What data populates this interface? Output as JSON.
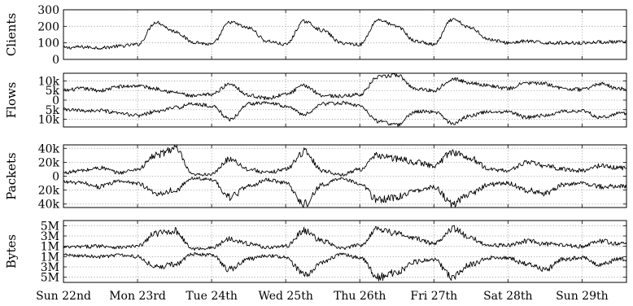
{
  "chart_data": [
    {
      "type": "line",
      "ylabel": "Clients",
      "ylim": [
        0,
        300
      ],
      "yticks": [
        0,
        100,
        200,
        300
      ],
      "ytick_labels": [
        "0",
        "100",
        "200",
        "300"
      ],
      "grid": true,
      "series": [
        {
          "x": [
            0,
            0.25,
            0.5,
            0.75,
            1,
            1.25,
            1.5,
            1.75,
            2,
            2.25,
            2.5,
            2.75,
            3,
            3.25,
            3.5,
            3.75,
            4,
            4.25,
            4.5,
            4.75,
            5,
            5.25,
            5.5,
            5.75,
            6,
            6.25,
            6.5,
            6.75,
            7,
            7.25,
            7.5
          ],
          "values": [
            70,
            75,
            70,
            80,
            90,
            225,
            170,
            105,
            90,
            225,
            190,
            110,
            90,
            230,
            175,
            100,
            90,
            240,
            200,
            110,
            90,
            240,
            190,
            120,
            100,
            110,
            100,
            100,
            100,
            105,
            105
          ]
        }
      ]
    },
    {
      "type": "line",
      "ylabel": "Flows",
      "ylim": [
        -14000,
        14000
      ],
      "yticks": [
        -10000,
        -5000,
        0,
        5000,
        10000
      ],
      "ytick_labels": [
        "10k",
        "5k",
        "0",
        "5k",
        "10k"
      ],
      "grid": true,
      "series": [
        {
          "x": [
            0,
            0.25,
            0.5,
            0.75,
            1,
            1.25,
            1.5,
            1.75,
            2,
            2.25,
            2.5,
            2.75,
            3,
            3.25,
            3.5,
            3.75,
            4,
            4.25,
            4.5,
            4.75,
            5,
            5.25,
            5.5,
            5.75,
            6,
            6.25,
            6.5,
            6.75,
            7,
            7.25,
            7.5
          ],
          "values": [
            5000,
            6000,
            5000,
            7000,
            7500,
            6000,
            4000,
            2000,
            3000,
            8500,
            2500,
            1000,
            3000,
            7500,
            2500,
            2000,
            3000,
            12000,
            13000,
            6000,
            5000,
            11000,
            9000,
            7500,
            6000,
            9000,
            8500,
            6000,
            5500,
            8500,
            6000
          ]
        },
        {
          "x": [
            0,
            0.25,
            0.5,
            0.75,
            1,
            1.25,
            1.5,
            1.75,
            2,
            2.25,
            2.5,
            2.75,
            3,
            3.25,
            3.5,
            3.75,
            4,
            4.25,
            4.5,
            4.75,
            5,
            5.25,
            5.5,
            5.75,
            6,
            6.25,
            6.5,
            6.75,
            7,
            7.25,
            7.5
          ],
          "values": [
            -5000,
            -5500,
            -5500,
            -7000,
            -8000,
            -6000,
            -4000,
            -2000,
            -3000,
            -10000,
            -2000,
            -1000,
            -3000,
            -7500,
            -2000,
            -1500,
            -3000,
            -11000,
            -13000,
            -6000,
            -6000,
            -12000,
            -8000,
            -6000,
            -6000,
            -9000,
            -8000,
            -6000,
            -5500,
            -9000,
            -7000
          ]
        }
      ]
    },
    {
      "type": "line",
      "ylabel": "Packets",
      "ylim": [
        -45000,
        45000
      ],
      "yticks": [
        -40000,
        -20000,
        0,
        20000,
        40000
      ],
      "ytick_labels": [
        "40k",
        "20k",
        "0",
        "20k",
        "40k"
      ],
      "grid": true,
      "series": [
        {
          "x": [
            0,
            0.25,
            0.5,
            0.75,
            1,
            1.25,
            1.5,
            1.75,
            2,
            2.25,
            2.5,
            2.75,
            3,
            3.25,
            3.5,
            3.75,
            4,
            4.25,
            4.5,
            4.75,
            5,
            5.25,
            5.5,
            5.75,
            6,
            6.25,
            6.5,
            6.75,
            7,
            7.25,
            7.5
          ],
          "values": [
            5000,
            8000,
            12000,
            5000,
            10000,
            30000,
            40000,
            2000,
            3000,
            25000,
            10000,
            5000,
            10000,
            35000,
            8000,
            2000,
            10000,
            30000,
            25000,
            20000,
            15000,
            35000,
            25000,
            10000,
            8000,
            20000,
            15000,
            10000,
            8000,
            15000,
            12000
          ]
        },
        {
          "x": [
            0,
            0.25,
            0.5,
            0.75,
            1,
            1.25,
            1.5,
            1.75,
            2,
            2.25,
            2.5,
            2.75,
            3,
            3.25,
            3.5,
            3.75,
            4,
            4.25,
            4.5,
            4.75,
            5,
            5.25,
            5.5,
            5.75,
            6,
            6.25,
            6.5,
            6.75,
            7,
            7.25,
            7.5
          ],
          "values": [
            -8000,
            -10000,
            -15000,
            -7000,
            -10000,
            -25000,
            -20000,
            -3000,
            -5000,
            -30000,
            -15000,
            -5000,
            -10000,
            -40000,
            -12000,
            -3000,
            -10000,
            -35000,
            -30000,
            -20000,
            -15000,
            -40000,
            -25000,
            -12000,
            -10000,
            -20000,
            -25000,
            -12000,
            -10000,
            -15000,
            -15000
          ]
        }
      ]
    },
    {
      "type": "line",
      "ylabel": "Bytes",
      "ylim": [
        -6000000,
        6000000
      ],
      "yticks": [
        -5000000,
        -3000000,
        -1000000,
        1000000,
        3000000,
        5000000
      ],
      "ytick_labels": [
        "5M",
        "3M",
        "1M",
        "1M",
        "3M",
        "5M"
      ],
      "grid": true,
      "series": [
        {
          "x": [
            0,
            0.25,
            0.5,
            0.75,
            1,
            1.25,
            1.5,
            1.75,
            2,
            2.25,
            2.5,
            2.75,
            3,
            3.25,
            3.5,
            3.75,
            4,
            4.25,
            4.5,
            4.75,
            5,
            5.25,
            5.5,
            5.75,
            6,
            6.25,
            6.5,
            6.75,
            7,
            7.25,
            7.5
          ],
          "values": [
            800000,
            900000,
            1100000,
            800000,
            1000000,
            3500000,
            4000000,
            500000,
            700000,
            2500000,
            1500000,
            800000,
            1000000,
            4000000,
            2000000,
            600000,
            1200000,
            4500000,
            3500000,
            2500000,
            1500000,
            4500000,
            2500000,
            1200000,
            1200000,
            2000000,
            1500000,
            1200000,
            1000000,
            2000000,
            1500000
          ]
        },
        {
          "x": [
            0,
            0.25,
            0.5,
            0.75,
            1,
            1.25,
            1.5,
            1.75,
            2,
            2.25,
            2.5,
            2.75,
            3,
            3.25,
            3.5,
            3.75,
            4,
            4.25,
            4.5,
            4.75,
            5,
            5.25,
            5.5,
            5.75,
            6,
            6.25,
            6.5,
            6.75,
            7,
            7.25,
            7.5
          ],
          "values": [
            -700000,
            -800000,
            -1000000,
            -700000,
            -1000000,
            -3000000,
            -2500000,
            -500000,
            -700000,
            -3500000,
            -1500000,
            -800000,
            -1200000,
            -4500000,
            -2000000,
            -600000,
            -1200000,
            -5000000,
            -4000000,
            -2000000,
            -1500000,
            -5000000,
            -2500000,
            -1200000,
            -1200000,
            -2500000,
            -3500000,
            -1500000,
            -1200000,
            -2500000,
            -1500000
          ]
        }
      ]
    }
  ],
  "x_axis": {
    "xlim": [
      0,
      7.6
    ],
    "ticks": [
      0,
      1,
      2,
      3,
      4,
      5,
      6,
      7
    ],
    "labels": [
      "Sun 22nd",
      "Mon 23rd",
      "Tue 24th",
      "Wed 25th",
      "Thu 26th",
      "Fri 27th",
      "Sat 28th",
      "Sun 29th"
    ]
  },
  "colors": {
    "series": "#000000",
    "grid": "#9a9a9a",
    "frame": "#000000"
  }
}
